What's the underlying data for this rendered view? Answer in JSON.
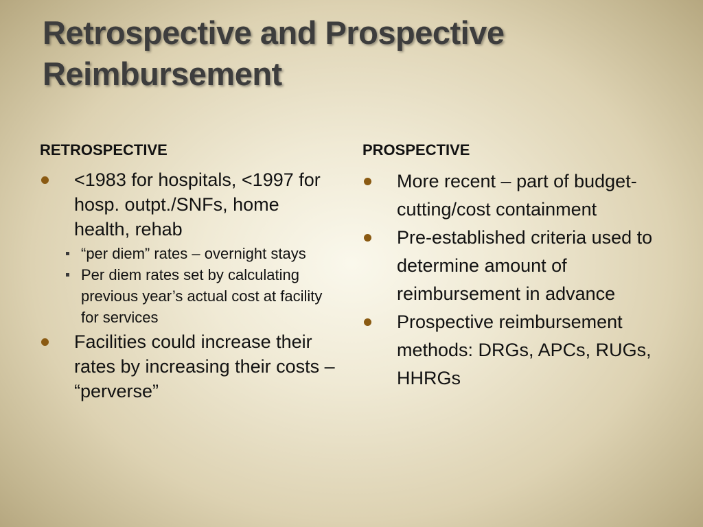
{
  "slide": {
    "title_line1": "Retrospective and Prospective",
    "title_line2": "Reimbursement",
    "left": {
      "heading": "RETROSPECTIVE",
      "bullets": [
        {
          "text": "<1983 for hospitals, <1997 for hosp. outpt./SNFs, home health, rehab",
          "sub": [
            "“per diem” rates – overnight stays",
            "Per diem rates set by calculating previous year’s actual cost at facility for services"
          ]
        },
        {
          "text": "Facilities could increase their rates by increasing their costs – “perverse”"
        }
      ]
    },
    "right": {
      "heading": "PROSPECTIVE",
      "bullets": [
        {
          "text": "More recent – part of budget-cutting/cost containment"
        },
        {
          "text": "Pre-established criteria used to determine amount of reimbursement in advance"
        },
        {
          "text": "Prospective reimbursement methods: DRGs, APCs, RUGs, HHRGs"
        }
      ]
    }
  },
  "colors": {
    "bullet": "#8a5a12",
    "title": "#3d3d3d",
    "background_center": "#faf8ec",
    "background_edge": "#b3a47c"
  }
}
